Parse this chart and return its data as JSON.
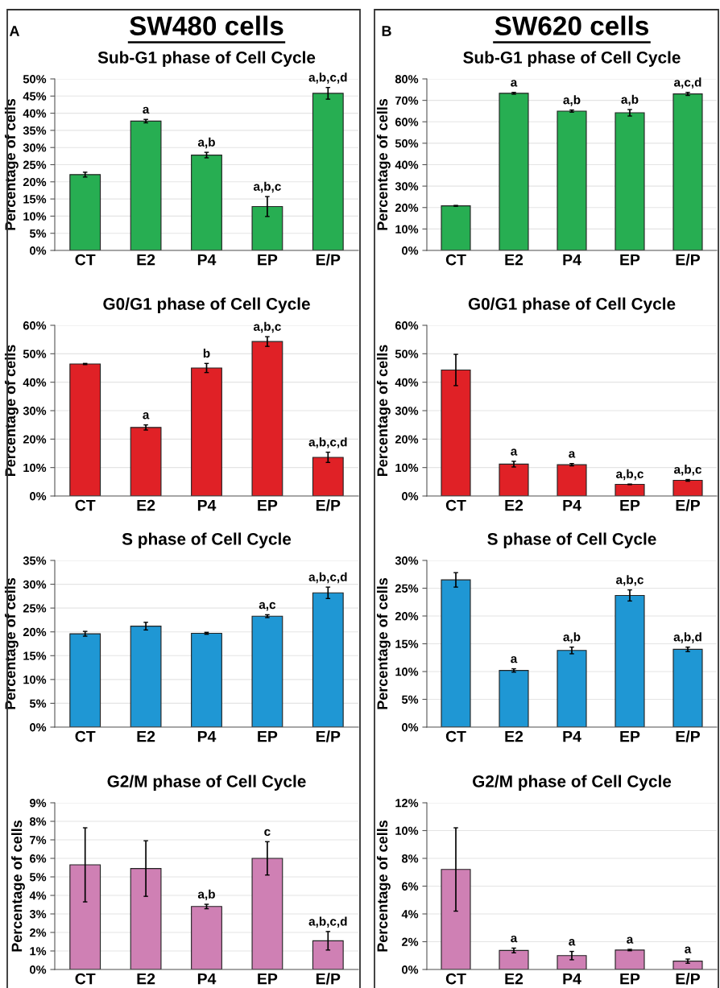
{
  "chart_data": [
    {
      "type": "bar",
      "title": "Sub-G1 phase of Cell Cycle",
      "ylabel": "Percentage of cells",
      "annotations": [
        "A",
        "SW480 cells"
      ],
      "categories": [
        "CT",
        "E2",
        "P4",
        "EP",
        "E/P"
      ],
      "values": [
        22.1,
        37.7,
        27.8,
        12.8,
        45.8
      ],
      "errors": [
        0.7,
        0.5,
        0.8,
        2.9,
        1.7
      ],
      "value_labels": [
        null,
        "a",
        "a,b",
        "a,b,c",
        "a,b,c,d"
      ],
      "color": "#27ae52",
      "ylim": [
        0,
        50
      ],
      "yticks": [
        {
          "value": 0,
          "label": "0%"
        },
        {
          "value": 5,
          "label": "5%"
        },
        {
          "value": 10,
          "label": "10%"
        },
        {
          "value": 15,
          "label": "15%"
        },
        {
          "value": 20,
          "label": "20%"
        },
        {
          "value": 25,
          "label": "25%"
        },
        {
          "value": 30,
          "label": "30%"
        },
        {
          "value": 35,
          "label": "35%"
        },
        {
          "value": 40,
          "label": "40%"
        },
        {
          "value": 45,
          "label": "45%"
        },
        {
          "value": 50,
          "label": "50%"
        }
      ],
      "grid": "y"
    },
    {
      "type": "bar",
      "title": "Sub-G1 phase of Cell Cycle",
      "ylabel": "Percentage of cells",
      "annotations": [
        "B",
        "SW620 cells"
      ],
      "categories": [
        "CT",
        "E2",
        "P4",
        "EP",
        "E/P"
      ],
      "values": [
        20.8,
        73.3,
        65.0,
        64.2,
        73.0
      ],
      "errors": [
        0.2,
        0.4,
        0.5,
        1.5,
        0.7
      ],
      "value_labels": [
        null,
        "a",
        "a,b",
        "a,b",
        "a,c,d"
      ],
      "color": "#27ae52",
      "ylim": [
        0,
        80
      ],
      "yticks": [
        {
          "value": 0,
          "label": "0%"
        },
        {
          "value": 10,
          "label": "10%"
        },
        {
          "value": 20,
          "label": "20%"
        },
        {
          "value": 30,
          "label": "30%"
        },
        {
          "value": 40,
          "label": "40%"
        },
        {
          "value": 50,
          "label": "50%"
        },
        {
          "value": 60,
          "label": "60%"
        },
        {
          "value": 70,
          "label": "70%"
        },
        {
          "value": 80,
          "label": "80%"
        }
      ],
      "grid": "y"
    },
    {
      "type": "bar",
      "title": "G0/G1 phase of Cell Cycle",
      "ylabel": "Percentage of cells",
      "categories": [
        "CT",
        "E2",
        "P4",
        "EP",
        "E/P"
      ],
      "values": [
        46.4,
        24.1,
        45.0,
        54.3,
        13.6
      ],
      "errors": [
        0.2,
        0.9,
        1.6,
        1.7,
        1.8
      ],
      "value_labels": [
        null,
        "a",
        "b",
        "a,b,c",
        "a,b,c,d"
      ],
      "color": "#e02126",
      "ylim": [
        0,
        60
      ],
      "yticks": [
        {
          "value": 0,
          "label": "0%"
        },
        {
          "value": 10,
          "label": "10%"
        },
        {
          "value": 20,
          "label": "20%"
        },
        {
          "value": 30,
          "label": "30%"
        },
        {
          "value": 40,
          "label": "40%"
        },
        {
          "value": 50,
          "label": "50%"
        },
        {
          "value": 60,
          "label": "60%"
        }
      ],
      "grid": "y"
    },
    {
      "type": "bar",
      "title": "G0/G1 phase of Cell Cycle",
      "ylabel": "Percentage of cells",
      "categories": [
        "CT",
        "E2",
        "P4",
        "EP",
        "E/P"
      ],
      "values": [
        44.3,
        11.2,
        11.0,
        4.1,
        5.5
      ],
      "errors": [
        5.5,
        1.0,
        0.4,
        0.1,
        0.3
      ],
      "value_labels": [
        null,
        "a",
        "a",
        "a,b,c",
        "a,b,c"
      ],
      "color": "#e02126",
      "ylim": [
        0,
        60
      ],
      "yticks": [
        {
          "value": 0,
          "label": "0%"
        },
        {
          "value": 10,
          "label": "10%"
        },
        {
          "value": 20,
          "label": "20%"
        },
        {
          "value": 30,
          "label": "30%"
        },
        {
          "value": 40,
          "label": "40%"
        },
        {
          "value": 50,
          "label": "50%"
        },
        {
          "value": 60,
          "label": "60%"
        }
      ],
      "grid": "y"
    },
    {
      "type": "bar",
      "title": "S phase of Cell Cycle",
      "ylabel": "Percentage of cells",
      "categories": [
        "CT",
        "E2",
        "P4",
        "EP",
        "E/P"
      ],
      "values": [
        19.6,
        21.2,
        19.7,
        23.3,
        28.2
      ],
      "errors": [
        0.5,
        0.8,
        0.2,
        0.3,
        1.2
      ],
      "value_labels": [
        null,
        null,
        null,
        "a,c",
        "a,b,c,d"
      ],
      "color": "#1f97d4",
      "ylim": [
        0,
        35
      ],
      "yticks": [
        {
          "value": 0,
          "label": "0%"
        },
        {
          "value": 5,
          "label": "5%"
        },
        {
          "value": 10,
          "label": "10%"
        },
        {
          "value": 15,
          "label": "15%"
        },
        {
          "value": 20,
          "label": "20%"
        },
        {
          "value": 25,
          "label": "25%"
        },
        {
          "value": 30,
          "label": "30%"
        },
        {
          "value": 35,
          "label": "35%"
        }
      ],
      "grid": "y"
    },
    {
      "type": "bar",
      "title": "S phase of Cell Cycle",
      "ylabel": "Percentage of cells",
      "categories": [
        "CT",
        "E2",
        "P4",
        "EP",
        "E/P"
      ],
      "values": [
        26.5,
        10.2,
        13.8,
        23.7,
        14.0
      ],
      "errors": [
        1.3,
        0.3,
        0.6,
        1.0,
        0.4
      ],
      "value_labels": [
        null,
        "a",
        "a,b",
        "a,b,c",
        "a,b,d"
      ],
      "color": "#1f97d4",
      "ylim": [
        0,
        30
      ],
      "yticks": [
        {
          "value": 0,
          "label": "0%"
        },
        {
          "value": 5,
          "label": "5%"
        },
        {
          "value": 10,
          "label": "10%"
        },
        {
          "value": 15,
          "label": "15%"
        },
        {
          "value": 20,
          "label": "20%"
        },
        {
          "value": 25,
          "label": "25%"
        },
        {
          "value": 30,
          "label": "30%"
        }
      ],
      "grid": "y"
    },
    {
      "type": "bar",
      "title": "G2/M phase of Cell Cycle",
      "ylabel": "Percentage of cells",
      "categories": [
        "CT",
        "E2",
        "P4",
        "EP",
        "E/P"
      ],
      "values": [
        5.65,
        5.45,
        3.4,
        6.0,
        1.55
      ],
      "errors": [
        2.0,
        1.5,
        0.12,
        0.9,
        0.5
      ],
      "value_labels": [
        null,
        null,
        "a,b",
        "c",
        "a,b,c,d"
      ],
      "color": "#cf80b4",
      "ylim": [
        0,
        9
      ],
      "yticks": [
        {
          "value": 0,
          "label": "0%"
        },
        {
          "value": 1,
          "label": "1%"
        },
        {
          "value": 2,
          "label": "2%"
        },
        {
          "value": 3,
          "label": "3%"
        },
        {
          "value": 4,
          "label": "4%"
        },
        {
          "value": 5,
          "label": "5%"
        },
        {
          "value": 6,
          "label": "6%"
        },
        {
          "value": 7,
          "label": "7%"
        },
        {
          "value": 8,
          "label": "8%"
        },
        {
          "value": 9,
          "label": "9%"
        }
      ],
      "grid": "y"
    },
    {
      "type": "bar",
      "title": "G2/M phase of Cell Cycle",
      "ylabel": "Percentage of cells",
      "categories": [
        "CT",
        "E2",
        "P4",
        "EP",
        "E/P"
      ],
      "values": [
        7.2,
        1.37,
        1.0,
        1.4,
        0.6
      ],
      "errors": [
        3.0,
        0.17,
        0.3,
        0.05,
        0.15
      ],
      "value_labels": [
        null,
        "a",
        "a",
        "a",
        "a"
      ],
      "color": "#cf80b4",
      "ylim": [
        0,
        12
      ],
      "yticks": [
        {
          "value": 0,
          "label": "0%"
        },
        {
          "value": 2,
          "label": "2%"
        },
        {
          "value": 4,
          "label": "4%"
        },
        {
          "value": 6,
          "label": "6%"
        },
        {
          "value": 8,
          "label": "8%"
        },
        {
          "value": 10,
          "label": "10%"
        },
        {
          "value": 12,
          "label": "12%"
        }
      ],
      "grid": "y"
    }
  ]
}
